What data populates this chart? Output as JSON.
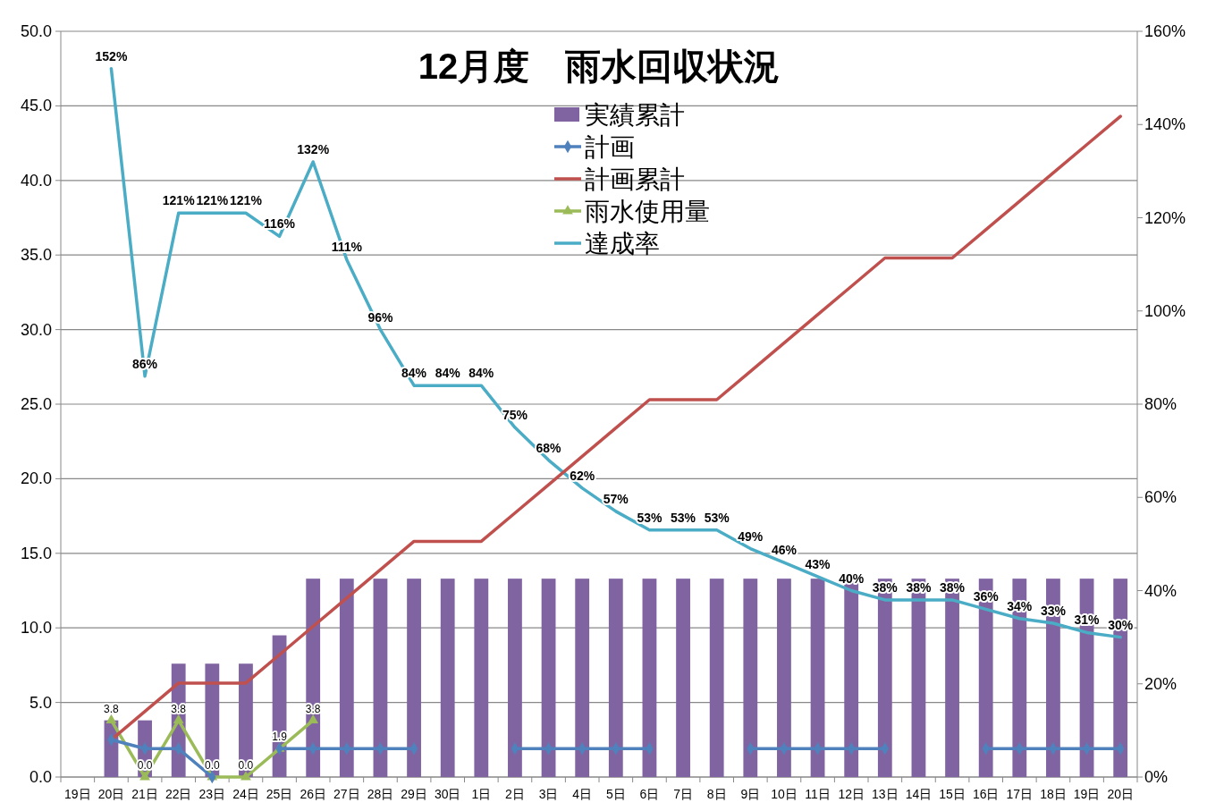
{
  "chart_data": {
    "type": "bar",
    "title": "12月度　雨水回収状況",
    "categories": [
      "19日",
      "20日",
      "21日",
      "22日",
      "23日",
      "24日",
      "25日",
      "26日",
      "27日",
      "28日",
      "29日",
      "30日",
      "1日",
      "2日",
      "3日",
      "4日",
      "5日",
      "6日",
      "7日",
      "8日",
      "9日",
      "10日",
      "11日",
      "12日",
      "13日",
      "14日",
      "15日",
      "16日",
      "17日",
      "18日",
      "19日",
      "20日"
    ],
    "series": [
      {
        "name": "実績累計",
        "color": "#8064a2",
        "values": [
          null,
          3.8,
          3.8,
          7.6,
          7.6,
          7.6,
          9.5,
          13.3,
          13.3,
          13.3,
          13.3,
          13.3,
          13.3,
          13.3,
          13.3,
          13.3,
          13.3,
          13.3,
          13.3,
          13.3,
          13.3,
          13.3,
          13.3,
          13.3,
          13.3,
          13.3,
          13.3,
          13.3,
          13.3,
          13.3,
          13.3,
          13.3
        ]
      },
      {
        "name": "計画",
        "type": "line",
        "marker": "diamond",
        "color": "#4f81bd",
        "values": [
          null,
          2.5,
          1.9,
          1.9,
          0,
          null,
          1.9,
          1.9,
          1.9,
          1.9,
          1.9,
          null,
          null,
          1.9,
          1.9,
          1.9,
          1.9,
          1.9,
          null,
          null,
          1.9,
          1.9,
          1.9,
          1.9,
          1.9,
          null,
          null,
          1.9,
          1.9,
          1.9,
          1.9,
          1.9
        ]
      },
      {
        "name": "計画累計",
        "type": "line",
        "marker": "none",
        "color": "#c0504d",
        "values": [
          null,
          2.5,
          4.4,
          6.3,
          6.3,
          6.3,
          8.2,
          10.1,
          12.0,
          13.9,
          15.8,
          15.8,
          15.8,
          17.7,
          19.6,
          21.5,
          23.4,
          25.3,
          25.3,
          25.3,
          27.2,
          29.1,
          31.0,
          32.9,
          34.8,
          34.8,
          34.8,
          36.7,
          38.6,
          40.5,
          42.4,
          44.3
        ]
      },
      {
        "name": "雨水使用量",
        "type": "line",
        "marker": "triangle",
        "color": "#9bbb59",
        "values": [
          null,
          3.8,
          0.0,
          3.8,
          0.0,
          0.0,
          1.9,
          3.8,
          null,
          null,
          null,
          null,
          null,
          null,
          null,
          null,
          null,
          null,
          null,
          null,
          null,
          null,
          null,
          null,
          null,
          null,
          null,
          null,
          null,
          null,
          null,
          null
        ],
        "value_labels": [
          null,
          "3.8",
          "0.0",
          "3.8",
          "0.0",
          "0.0",
          "1.9",
          "3.8",
          null,
          null,
          null,
          null,
          null,
          null,
          null,
          null,
          null,
          null,
          null,
          null,
          null,
          null,
          null,
          null,
          null,
          null,
          null,
          null,
          null,
          null,
          null,
          null
        ]
      },
      {
        "name": "達成率",
        "type": "line",
        "marker": "none",
        "axis": "y2",
        "color": "#4bacc6",
        "values": [
          null,
          152,
          86,
          121,
          121,
          121,
          116,
          132,
          111,
          96,
          84,
          84,
          84,
          75,
          68,
          62,
          57,
          53,
          53,
          53,
          49,
          46,
          43,
          40,
          38,
          38,
          38,
          36,
          34,
          33,
          31,
          30
        ],
        "value_labels": [
          null,
          "152%",
          "86%",
          "121%",
          "121%",
          "121%",
          "116%",
          "132%",
          "111%",
          "96%",
          "84%",
          "84%",
          "84%",
          "75%",
          "68%",
          "62%",
          "57%",
          "53%",
          "53%",
          "53%",
          "49%",
          "46%",
          "43%",
          "40%",
          "38%",
          "38%",
          "38%",
          "36%",
          "34%",
          "33%",
          "31%",
          "30%"
        ]
      }
    ],
    "ylim": [
      0,
      50
    ],
    "yticks": [
      {
        "value": 0,
        "label": "0.0"
      },
      {
        "value": 5,
        "label": "5.0"
      },
      {
        "value": 10,
        "label": "10.0"
      },
      {
        "value": 15,
        "label": "15.0"
      },
      {
        "value": 20,
        "label": "20.0"
      },
      {
        "value": 25,
        "label": "25.0"
      },
      {
        "value": 30,
        "label": "30.0"
      },
      {
        "value": 35,
        "label": "35.0"
      },
      {
        "value": 40,
        "label": "40.0"
      },
      {
        "value": 45,
        "label": "45.0"
      },
      {
        "value": 50,
        "label": "50.0"
      }
    ],
    "y2lim": [
      0,
      160
    ],
    "y2ticks": [
      {
        "value": 0,
        "label": "0%"
      },
      {
        "value": 20,
        "label": "20%"
      },
      {
        "value": 40,
        "label": "40%"
      },
      {
        "value": 60,
        "label": "60%"
      },
      {
        "value": 80,
        "label": "80%"
      },
      {
        "value": 100,
        "label": "100%"
      },
      {
        "value": 120,
        "label": "120%"
      },
      {
        "value": 140,
        "label": "140%"
      },
      {
        "value": 160,
        "label": "160%"
      }
    ],
    "grid": "y",
    "legend": "top"
  }
}
